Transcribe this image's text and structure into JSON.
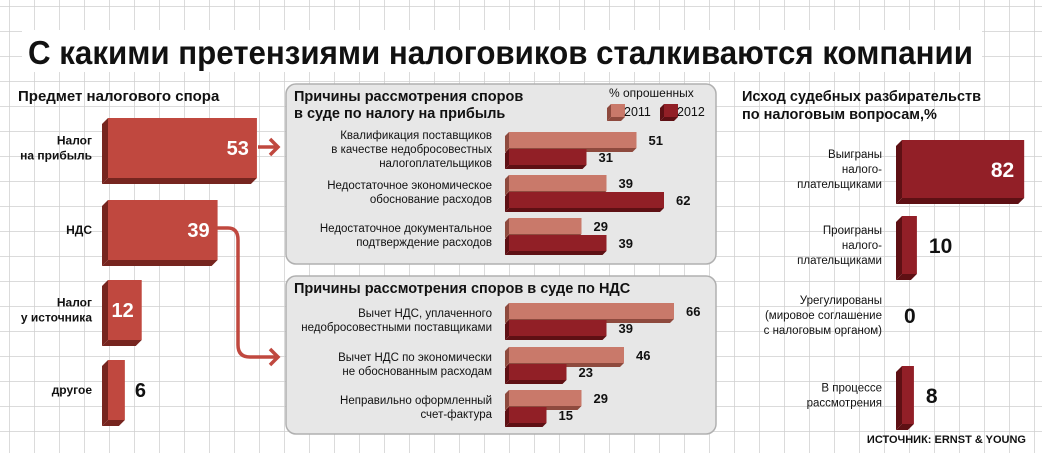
{
  "title": "С какими претензиями налоговиков сталкиваются компании",
  "source": "ИСТОЧНИК: ERNST & YOUNG",
  "colors": {
    "main_bar": "#c0483f",
    "main_bar_side": "#76251f",
    "series_2011": "#c9796a",
    "series_2011_side": "#8e4a3e",
    "series_2012": "#911f26",
    "series_2012_side": "#5e1014",
    "outcome_bar": "#921f27",
    "panel_bg": "#e7e7e7",
    "grid": "#cfcfcf"
  },
  "chart_data": [
    {
      "type": "bar",
      "orientation": "horizontal",
      "title": "Предмет налогового спора",
      "categories": [
        [
          "Налог",
          "на прибыль"
        ],
        [
          "НДС"
        ],
        [
          "Налог",
          "у источника"
        ],
        [
          "другое"
        ]
      ],
      "values": [
        53,
        39,
        12,
        6
      ]
    },
    {
      "type": "bar",
      "orientation": "horizontal",
      "title_lines": [
        "Причины рассмотрения споров",
        "в суде по налогу на прибыль"
      ],
      "legend_title": "% опрошенных",
      "legend_position": "top-right",
      "categories": [
        [
          "Квалификация поставщиков",
          "в качестве недобросовестных",
          "налогоплательщиков"
        ],
        [
          "Недостаточное экономическое",
          "обоснование расходов"
        ],
        [
          "Недостаточное документальное",
          "подтверждение расходов"
        ]
      ],
      "series": [
        {
          "name": "2011",
          "values": [
            51,
            39,
            29
          ]
        },
        {
          "name": "2012",
          "values": [
            31,
            62,
            39
          ]
        }
      ]
    },
    {
      "type": "bar",
      "orientation": "horizontal",
      "title_lines": [
        "Причины рассмотрения споров в суде по НДС"
      ],
      "categories": [
        [
          "Вычет НДС, уплаченного",
          "недобросовестными поставщиками"
        ],
        [
          "Вычет НДС по экономически",
          "не обоснованным расходам"
        ],
        [
          "Неправильно оформленный",
          "счет-фактура"
        ]
      ],
      "series": [
        {
          "name": "2011",
          "values": [
            66,
            46,
            29
          ]
        },
        {
          "name": "2012",
          "values": [
            39,
            23,
            15
          ]
        }
      ]
    },
    {
      "type": "bar",
      "orientation": "horizontal",
      "title_lines": [
        "Исход судебных разбирательств",
        "по налоговым вопросам,%"
      ],
      "categories": [
        [
          "Выиграны",
          "налого-",
          "плательщиками"
        ],
        [
          "Проиграны",
          "налого-",
          "плательщиками"
        ],
        [
          "Урегулированы",
          "(мировое соглашение",
          "с налоговым органом)"
        ],
        [
          "В процессе",
          "рассмотрения"
        ]
      ],
      "values": [
        82,
        10,
        0,
        8
      ]
    }
  ]
}
